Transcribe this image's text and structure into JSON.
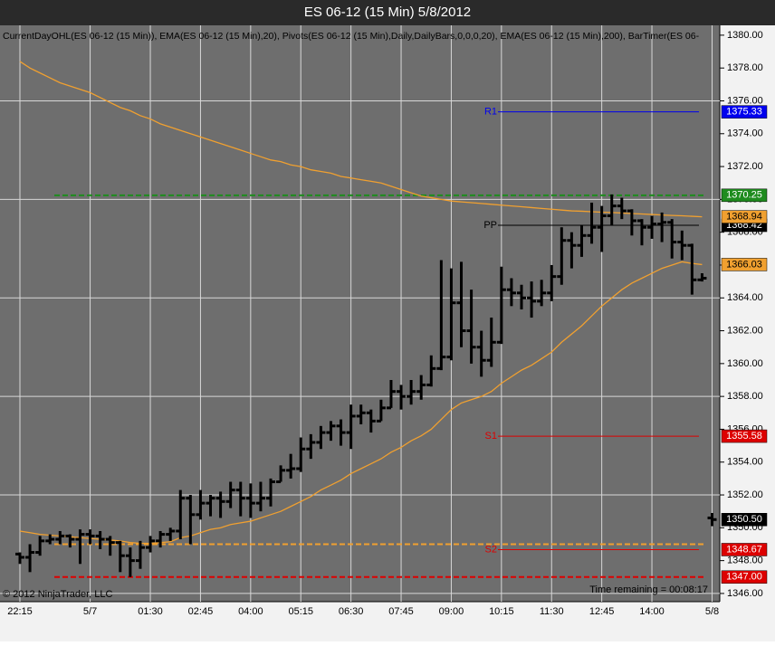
{
  "chart_data": {
    "type": "ohlc",
    "title": "ES 06-12 (15 Min)  5/8/2012",
    "indicators_label": "CurrentDayOHL(ES 06-12 (15 Min)), EMA(ES 06-12 (15 Min),20), Pivots(ES 06-12 (15 Min),Daily,DailyBars,0,0,0,20), EMA(ES 06-12 (15 Min),200), BarTimer(ES 06-",
    "copyright": "© 2012 NinjaTrader, LLC",
    "timer": "Time remaining = 00:08:17",
    "categories": [
      "22:15",
      null,
      null,
      null,
      null,
      null,
      null,
      "5/7",
      null,
      null,
      null,
      null,
      null,
      "01:30",
      null,
      null,
      null,
      null,
      "02:45",
      null,
      null,
      null,
      null,
      "04:00",
      null,
      null,
      null,
      null,
      "05:15",
      null,
      null,
      null,
      null,
      "06:30",
      null,
      null,
      null,
      null,
      "07:45",
      null,
      null,
      null,
      null,
      "09:00",
      null,
      null,
      null,
      null,
      "10:15",
      null,
      null,
      null,
      null,
      "11:30",
      null,
      null,
      null,
      null,
      "12:45",
      null,
      null,
      null,
      null,
      "14:00",
      null,
      null,
      null,
      null,
      null,
      "5/8"
    ],
    "open": [
      1348.4,
      1348.2,
      1348.5,
      1349.2,
      1349.3,
      1349.5,
      1349.3,
      1349.6,
      1349.5,
      1349.3,
      1349.1,
      1348.3,
      1348.0,
      1348.8,
      1349.2,
      1349.6,
      1349.8,
      1351.8,
      1350.8,
      1351.5,
      1351.8,
      1351.6,
      1352.3,
      1351.8,
      1351.5,
      1351.8,
      1352.8,
      1353.5,
      1353.6,
      1354.8,
      1355.2,
      1355.8,
      1356.2,
      1355.8,
      1356.8,
      1357.0,
      1356.5,
      1357.3,
      1358.3,
      1358.0,
      1358.3,
      1358.7,
      1359.7,
      1360.4,
      1363.7,
      1362.0,
      1361.0,
      1360.2,
      1361.3,
      1364.5,
      1364.3,
      1364.0,
      1363.8,
      1364.3,
      1365.3,
      1367.5,
      1367.2,
      1367.8,
      1368.3,
      1369.0,
      1369.6,
      1369.3,
      1368.7,
      1368.3,
      1368.5,
      1368.6,
      1367.4,
      1367.2,
      1365.1,
      1350.6
    ],
    "high": [
      1348.5,
      1349,
      1349.5,
      1349.6,
      1349.8,
      1349.6,
      1349.9,
      1349.9,
      1349.8,
      1349.5,
      1349.2,
      1348.8,
      1349.2,
      1349.5,
      1349.8,
      1350,
      1352.3,
      1352.0,
      1352.3,
      1352,
      1352.2,
      1352.8,
      1352.8,
      1352.7,
      1352.8,
      1353,
      1353.8,
      1354.5,
      1355.5,
      1355.7,
      1356.2,
      1356.5,
      1356.6,
      1357.5,
      1357.5,
      1357.2,
      1357.8,
      1359,
      1358.7,
      1359,
      1359.3,
      1360.5,
      1366.3,
      1365.8,
      1366.2,
      1364.5,
      1362,
      1362.8,
      1365.9,
      1365.2,
      1364.8,
      1365,
      1365.1,
      1366,
      1368.3,
      1368,
      1368.4,
      1369.8,
      1369.6,
      1370.3,
      1370.1,
      1369.4,
      1368.8,
      1369.0,
      1369.2,
      1368.8,
      1368.1,
      1367.3,
      1365.5,
      1350.9
    ],
    "low": [
      1347.8,
      1347.3,
      1348.3,
      1349,
      1349,
      1348.8,
      1347.8,
      1349,
      1348.7,
      1348.3,
      1347.3,
      1347,
      1347.5,
      1348.5,
      1348.8,
      1349.2,
      1349.3,
      1349,
      1350.5,
      1350.7,
      1350.6,
      1351.2,
      1350.7,
      1350.6,
      1351,
      1351.3,
      1352.8,
      1353,
      1353.4,
      1354.2,
      1354.8,
      1355.3,
      1355,
      1354.8,
      1356.3,
      1355.8,
      1356.5,
      1357.3,
      1357.2,
      1357.5,
      1357.8,
      1358.6,
      1359.6,
      1360.2,
      1361,
      1360,
      1359.2,
      1359.8,
      1361.2,
      1363.5,
      1363.3,
      1362.8,
      1363.5,
      1363.8,
      1364.8,
      1365.8,
      1366.5,
      1367.3,
      1366.8,
      1368.4,
      1368.8,
      1367.8,
      1367.2,
      1367.6,
      1367.4,
      1366.4,
      1366.3,
      1364.2,
      1365,
      1350.1
    ],
    "close": [
      1348.2,
      1348.5,
      1349.2,
      1349.3,
      1349.5,
      1349.3,
      1349.6,
      1349.5,
      1349.3,
      1349.1,
      1348.3,
      1348.0,
      1348.8,
      1349.2,
      1349.6,
      1349.8,
      1351.8,
      1350.8,
      1351.5,
      1351.8,
      1351.6,
      1352.3,
      1351.8,
      1351.5,
      1351.8,
      1352.8,
      1353.5,
      1353.6,
      1354.8,
      1355.2,
      1355.8,
      1356.2,
      1355.8,
      1356.8,
      1357.0,
      1356.5,
      1357.3,
      1358.3,
      1358.0,
      1358.3,
      1358.7,
      1359.7,
      1360.4,
      1363.7,
      1362.0,
      1361.0,
      1360.2,
      1361.3,
      1364.5,
      1364.3,
      1364.0,
      1363.8,
      1364.3,
      1365.3,
      1367.5,
      1367.2,
      1367.8,
      1368.3,
      1369.0,
      1369.6,
      1369.3,
      1368.7,
      1368.3,
      1368.5,
      1368.6,
      1367.4,
      1367.2,
      1365.1,
      1365.2,
      1350.5
    ],
    "last_close_label": "1350.50",
    "color": "#000000",
    "series": [
      {
        "color": "#f0a030",
        "values": [
          1349.8,
          1349.7,
          1349.6,
          1349.55,
          1349.5,
          1349.45,
          1349.4,
          1349.35,
          1349.3,
          1349.25,
          1349.2,
          1349.1,
          1349.05,
          1349.05,
          1349.1,
          1349.15,
          1349.4,
          1349.5,
          1349.7,
          1349.9,
          1350.0,
          1350.2,
          1350.3,
          1350.4,
          1350.6,
          1350.8,
          1351.0,
          1351.3,
          1351.6,
          1351.9,
          1352.3,
          1352.6,
          1352.9,
          1353.3,
          1353.6,
          1353.9,
          1354.2,
          1354.6,
          1354.9,
          1355.3,
          1355.6,
          1356.0,
          1356.6,
          1357.2,
          1357.6,
          1357.8,
          1358.0,
          1358.3,
          1358.8,
          1359.2,
          1359.6,
          1359.9,
          1360.3,
          1360.7,
          1361.3,
          1361.8,
          1362.3,
          1362.9,
          1363.5,
          1364.0,
          1364.5,
          1364.9,
          1365.2,
          1365.5,
          1365.8,
          1366.0,
          1366.2,
          1366.1,
          1366.03,
          null
        ]
      },
      {
        "color": "#f0a030",
        "values": [
          1378.4,
          1378.0,
          1377.7,
          1377.4,
          1377.1,
          1376.9,
          1376.7,
          1376.5,
          1376.2,
          1375.9,
          1375.6,
          1375.4,
          1375.1,
          1374.9,
          1374.6,
          1374.4,
          1374.2,
          1374.0,
          1373.8,
          1373.6,
          1373.4,
          1373.2,
          1373.0,
          1372.8,
          1372.6,
          1372.4,
          1372.3,
          1372.1,
          1372.0,
          1371.8,
          1371.7,
          1371.6,
          1371.4,
          1371.3,
          1371.2,
          1371.1,
          1371.0,
          1370.8,
          1370.6,
          1370.4,
          1370.2,
          1370.1,
          1370.0,
          1369.9,
          1369.85,
          1369.8,
          1369.75,
          1369.7,
          1369.65,
          1369.6,
          1369.55,
          1369.5,
          1369.45,
          1369.4,
          1369.35,
          1369.3,
          1369.28,
          1369.25,
          1369.22,
          1369.2,
          1369.17,
          1369.14,
          1369.11,
          1369.08,
          1369.05,
          1369.02,
          1369.0,
          1368.97,
          1368.94,
          null
        ]
      }
    ],
    "pivots": [
      {
        "name": "R1",
        "value": 1375.33,
        "color": "#0000ee"
      },
      {
        "name": "PP",
        "value": 1368.42,
        "color": "#000000"
      },
      {
        "name": "S1",
        "value": 1355.58,
        "color": "#dd0000"
      },
      {
        "name": "S2",
        "value": 1348.67,
        "color": "#dd0000"
      }
    ],
    "day_levels": [
      {
        "value": 1370.25,
        "color": "#1e8c1e"
      },
      {
        "value": 1347,
        "label": "1347.00",
        "color": "#dd0000"
      },
      {
        "value": 1349.0,
        "color": "#f0a030"
      }
    ],
    "ylim": [
      1345.5,
      1380.6
    ],
    "yticks": [
      {
        "value": 1346,
        "label": "1346.00"
      },
      {
        "value": 1348,
        "label": "1348.00"
      },
      {
        "value": 1350,
        "label": "1350.00"
      },
      {
        "value": 1352,
        "label": "1352.00"
      },
      {
        "value": 1354,
        "label": "1354.00"
      },
      {
        "value": 1356,
        "label": "1356.00"
      },
      {
        "value": 1358,
        "label": "1358.00"
      },
      {
        "value": 1360,
        "label": "1360.00"
      },
      {
        "value": 1362,
        "label": "1362.00"
      },
      {
        "value": 1364,
        "label": "1364.00"
      },
      {
        "value": 1366,
        "label": "1366.00"
      },
      {
        "value": 1368,
        "label": "1368.00"
      },
      {
        "value": 1370,
        "label": "1370.00"
      },
      {
        "value": 1372,
        "label": "1372.00"
      },
      {
        "value": 1374,
        "label": "1374.00"
      },
      {
        "value": 1376,
        "label": "1376.00"
      },
      {
        "value": 1378,
        "label": "1378.00"
      },
      {
        "value": 1380,
        "label": "1380.00"
      }
    ],
    "grid": true
  }
}
